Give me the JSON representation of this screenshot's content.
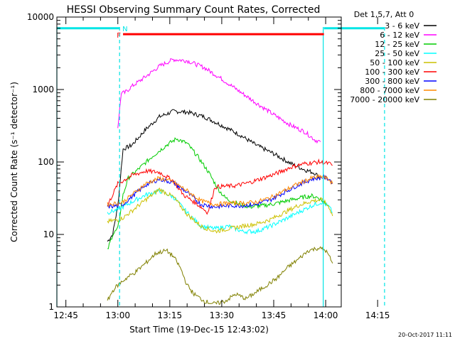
{
  "chart_data": {
    "type": "line",
    "title": "HESSI Observing Summary Count Rates, Corrected",
    "xlabel": "Start Time (19-Dec-15 12:43:02)",
    "ylabel": "Corrected Count Rate (s⁻¹ detector⁻¹)",
    "yscale": "log",
    "ylim": [
      1,
      10000
    ],
    "xlim_minutes": [
      12.4,
      94.5
    ],
    "x_ticks": [
      {
        "label": "12:45",
        "min": 15
      },
      {
        "label": "13:00",
        "min": 30
      },
      {
        "label": "13:15",
        "min": 45
      },
      {
        "label": "13:30",
        "min": 60
      },
      {
        "label": "13:45",
        "min": 75
      },
      {
        "label": "14:00",
        "min": 90
      },
      {
        "label": "14:15",
        "min": 105
      }
    ],
    "y_ticks": [
      {
        "label": "1",
        "value": 1
      },
      {
        "label": "10",
        "value": 10
      },
      {
        "label": "100",
        "value": 100
      },
      {
        "label": "1000",
        "value": 1000
      },
      {
        "label": "10000",
        "value": 10000
      }
    ],
    "legend_title": "Det 1,5,7, Att 0",
    "legend_position": "outside-right",
    "series": [
      {
        "name": "3 - 6 keV",
        "color": "#000000",
        "x": [
          27,
          28.5,
          30,
          31.5,
          34,
          38,
          42,
          46,
          50,
          55,
          60,
          65,
          70,
          75,
          80,
          84,
          87,
          88.5
        ],
        "y": [
          8,
          10,
          25,
          150,
          170,
          280,
          420,
          500,
          490,
          420,
          320,
          240,
          170,
          130,
          95,
          78,
          70,
          58
        ]
      },
      {
        "name": "6 - 12 keV",
        "color": "#ff00ff",
        "x": [
          30,
          31,
          32,
          34,
          38,
          42,
          46,
          50,
          55,
          60,
          65,
          70,
          75,
          80,
          84,
          87,
          88.5
        ],
        "y": [
          300,
          900,
          900,
          1100,
          1500,
          2100,
          2600,
          2500,
          2000,
          1400,
          950,
          650,
          450,
          320,
          260,
          200,
          190
        ]
      },
      {
        "name": "12 - 25 keV",
        "color": "#00cc00",
        "x": [
          27,
          28.5,
          30,
          31.5,
          33,
          36,
          40,
          44,
          47,
          50,
          53,
          56,
          59,
          61,
          64,
          68,
          72,
          76,
          80,
          84,
          86,
          88,
          89.5,
          91
        ],
        "y": [
          6,
          10,
          12,
          35,
          60,
          80,
          120,
          170,
          210,
          180,
          120,
          75,
          42,
          32,
          27,
          24,
          25,
          27,
          30,
          33,
          34,
          32,
          28,
          25
        ]
      },
      {
        "name": "25 - 50 keV",
        "color": "#00ffff",
        "x": [
          27,
          30,
          31.5,
          34,
          38,
          42,
          46,
          50,
          54,
          58,
          62,
          66,
          70,
          74,
          78,
          82,
          86,
          89,
          91,
          92
        ],
        "y": [
          20,
          22,
          24,
          28,
          35,
          40,
          33,
          20,
          13,
          12,
          13,
          11,
          11,
          13,
          16,
          20,
          25,
          28,
          24,
          20
        ]
      },
      {
        "name": "50 - 100 keV",
        "color": "#ccc000",
        "x": [
          27,
          30,
          31.5,
          34,
          38,
          42,
          46,
          50,
          54,
          58,
          62,
          66,
          70,
          74,
          78,
          82,
          86,
          89,
          91,
          92
        ],
        "y": [
          15,
          16,
          17,
          21,
          30,
          42,
          33,
          19,
          13,
          11,
          12,
          13,
          14,
          16,
          20,
          25,
          29,
          30,
          24,
          18
        ]
      },
      {
        "name": "100 - 300 keV",
        "color": "#ff0000",
        "x": [
          27,
          30,
          31.5,
          34,
          38,
          42,
          46,
          49,
          52,
          54,
          56,
          58,
          60,
          64,
          68,
          72,
          76,
          80,
          84,
          88,
          91,
          92
        ],
        "y": [
          25,
          50,
          55,
          65,
          75,
          72,
          55,
          35,
          28,
          24,
          20,
          45,
          46,
          47,
          52,
          60,
          70,
          85,
          95,
          100,
          95,
          90
        ]
      },
      {
        "name": "300 - 800 keV",
        "color": "#0000ff",
        "x": [
          27,
          30,
          31.5,
          34,
          38,
          42,
          46,
          50,
          54,
          58,
          62,
          66,
          70,
          74,
          78,
          82,
          86,
          89,
          91,
          92
        ],
        "y": [
          24,
          25,
          26,
          33,
          48,
          58,
          52,
          38,
          26,
          24,
          25,
          25,
          26,
          30,
          38,
          48,
          58,
          62,
          58,
          52
        ]
      },
      {
        "name": "800 - 7000 keV",
        "color": "#ff8800",
        "x": [
          27,
          30,
          31.5,
          34,
          38,
          42,
          46,
          50,
          54,
          58,
          62,
          66,
          70,
          74,
          78,
          82,
          86,
          89,
          91,
          92
        ],
        "y": [
          26,
          27,
          28,
          35,
          50,
          60,
          53,
          40,
          29,
          26,
          27,
          27,
          28,
          32,
          40,
          50,
          60,
          63,
          57,
          50
        ]
      },
      {
        "name": "7000 - 20000 keV",
        "color": "#808000",
        "x": [
          27,
          28,
          29,
          31,
          33,
          35,
          38,
          41,
          44,
          46,
          48,
          50,
          52,
          55,
          58,
          61,
          64,
          67,
          70,
          73,
          76,
          79,
          82,
          85,
          88,
          90,
          91,
          92
        ],
        "y": [
          1.2,
          1.5,
          1.8,
          2.2,
          2.6,
          3.0,
          4.0,
          5.5,
          6.0,
          5.0,
          3.5,
          2.0,
          1.5,
          1.2,
          1.1,
          1.2,
          1.5,
          1.3,
          1.6,
          2.0,
          2.5,
          3.5,
          4.5,
          6.0,
          6.5,
          6.0,
          5.0,
          4.0
        ]
      }
    ],
    "annotations": [
      {
        "kind": "flag-bar",
        "label": "F",
        "color": "#ff0000",
        "value": 5800,
        "x_start": 31.5,
        "x_end": 89.5
      },
      {
        "kind": "flag-bar",
        "label": "",
        "color": "#00e5e5",
        "value": 7000,
        "x_start": 12.4,
        "x_end": 30.5
      },
      {
        "kind": "flag-bar",
        "label": "",
        "color": "#00e5e5",
        "value": 7000,
        "x_start": 89.5,
        "x_end": 107
      },
      {
        "kind": "marker",
        "label": "N",
        "color": "#00e5e5",
        "x": 30.5
      }
    ],
    "vlines": [
      {
        "x": 12.4,
        "color": "#00e5e5",
        "dashed": false
      },
      {
        "x": 30.5,
        "color": "#00e5e5",
        "dashed": true
      },
      {
        "x": 89.3,
        "color": "#00e5e5",
        "dashed": false
      },
      {
        "x": 107,
        "color": "#00e5e5",
        "dashed": true
      }
    ]
  },
  "footer": {
    "timestamp": "20-Oct-2017 11:11"
  }
}
